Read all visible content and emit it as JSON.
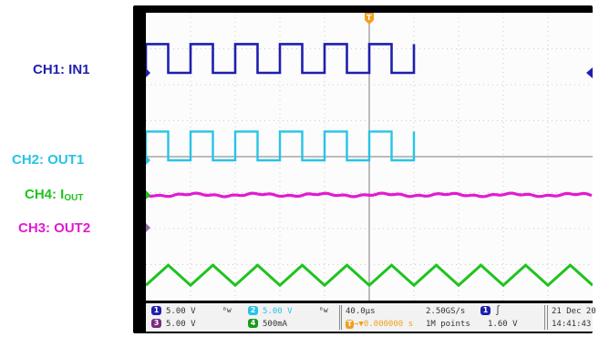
{
  "labels": {
    "ch1": "CH1: IN1",
    "ch2": "CH2: OUT1",
    "ch4_main": "CH4: I",
    "ch4_sub": "OUT",
    "ch3": "CH3: OUT2"
  },
  "colors": {
    "ch1": "#1f1fae",
    "ch2": "#27c3e6",
    "ch3": "#e11bd0",
    "ch4": "#1ec31e",
    "trigger": "#f0a020"
  },
  "statusbar": {
    "ch1_num": "1",
    "ch1_scale": "5.00 V",
    "ch2_num": "2",
    "ch2_scale": "5.00 V",
    "ch3_num": "3",
    "ch3_scale": "5.00 V",
    "ch4_num": "4",
    "ch4_scale": "500mA",
    "timebase": "40.0µs",
    "sample_rate": "2.50GS/s",
    "trigger_offset": "0.000000 s",
    "record_length": "1M points",
    "trigger_channel": "1",
    "trigger_level": "1.60 V",
    "date": "21 Dec 20",
    "time": "14:41:43"
  },
  "chart_data": {
    "type": "line",
    "title": "",
    "xlabel": "",
    "ylabel": "",
    "x_unit": "µs",
    "time_per_div": 40.0,
    "xlim": [
      -200,
      200
    ],
    "grid": true,
    "series": [
      {
        "name": "CH1: IN1",
        "kind": "square",
        "period_us": 40,
        "duty": 0.5,
        "low": 0,
        "high": 5,
        "unit": "V",
        "volts_per_div": 5.0
      },
      {
        "name": "CH2: OUT1",
        "kind": "square",
        "period_us": 40,
        "duty": 0.5,
        "low": 0,
        "high": 5,
        "unit": "V",
        "volts_per_div": 5.0
      },
      {
        "name": "CH3: OUT2",
        "kind": "dc",
        "level": 0,
        "unit": "V",
        "volts_per_div": 5.0
      },
      {
        "name": "CH4: IOUT",
        "kind": "triangle",
        "period_us": 40,
        "low": 0.5,
        "high": 0.9,
        "unit": "A",
        "amps_per_div": 0.5
      }
    ]
  }
}
